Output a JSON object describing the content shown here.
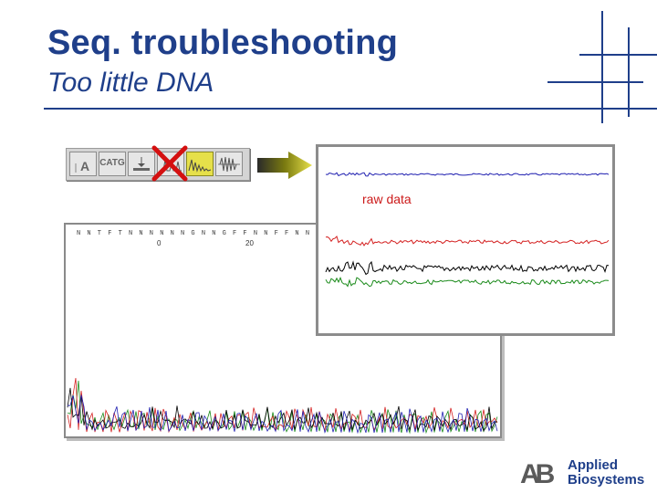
{
  "slide": {
    "title": "Seq. troubleshooting",
    "subtitle": "Too little DNA"
  },
  "toolbar": {
    "buttons": [
      {
        "name": "A",
        "icon": "text-a-icon"
      },
      {
        "name": "CATG",
        "icon": "sequence-text-icon"
      },
      {
        "name": "",
        "icon": "baseline-icon"
      },
      {
        "name": "",
        "icon": "analyzed-data-icon"
      },
      {
        "name": "",
        "icon": "raw-data-icon"
      },
      {
        "name": "",
        "icon": "waveform-icon"
      }
    ],
    "active_button": "raw-data-icon",
    "rejected_mark": "red-x-icon"
  },
  "electropherogram": {
    "bases": "N N T F T N N N N N N G N N G F F N N F F N N F N N N N",
    "positions": [
      "0",
      "20"
    ]
  },
  "raw_panel": {
    "label": "raw data",
    "traces": [
      {
        "color": "#1f1fb0"
      },
      {
        "color": "#d42020"
      },
      {
        "color": "#000000"
      },
      {
        "color": "#1a8a1a"
      }
    ]
  },
  "logo": {
    "mark": "AB",
    "line1": "Applied",
    "line2": "Biosystems"
  },
  "colors": {
    "title": "#1f3f8a",
    "accent_yellow": "#e6e04a",
    "reject_red": "#d41010"
  }
}
